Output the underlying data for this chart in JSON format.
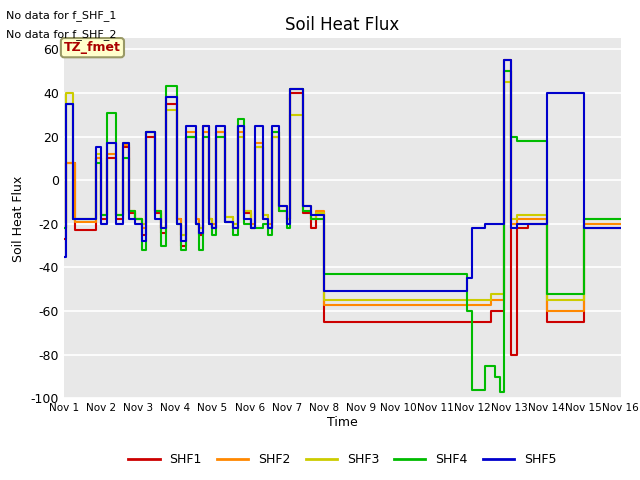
{
  "title": "Soil Heat Flux",
  "ylabel": "Soil Heat Flux",
  "xlabel": "Time",
  "ylim": [
    -100,
    65
  ],
  "xlim": [
    0,
    15
  ],
  "note1": "No data for f_SHF_1",
  "note2": "No data for f_SHF_2",
  "legend_label": "TZ_fmet",
  "series_colors": {
    "SHF1": "#cc0000",
    "SHF2": "#ff8800",
    "SHF3": "#cccc00",
    "SHF4": "#00bb00",
    "SHF5": "#0000cc"
  },
  "xtick_labels": [
    "Nov 1",
    "Nov 2",
    "Nov 3",
    "Nov 4",
    "Nov 5",
    "Nov 6",
    "Nov 7",
    "Nov 8",
    "Nov 9",
    "Nov 10",
    "Nov 11",
    "Nov 12",
    "Nov 13",
    "Nov 14",
    "Nov 15",
    "Nov 16"
  ],
  "xtick_positions": [
    0,
    1,
    2,
    3,
    4,
    5,
    6,
    7,
    8,
    9,
    10,
    11,
    12,
    13,
    14,
    15
  ],
  "ytick_positions": [
    -100,
    -80,
    -60,
    -40,
    -20,
    0,
    20,
    40,
    60
  ],
  "background_color": "#e8e8e8",
  "SHF1": [
    [
      0.0,
      -27
    ],
    [
      0.05,
      -27
    ],
    [
      0.05,
      8
    ],
    [
      0.3,
      8
    ],
    [
      0.3,
      -23
    ],
    [
      0.85,
      -23
    ],
    [
      0.85,
      10
    ],
    [
      1.0,
      10
    ],
    [
      1.0,
      -18
    ],
    [
      1.15,
      -18
    ],
    [
      1.15,
      10
    ],
    [
      1.4,
      10
    ],
    [
      1.4,
      -18
    ],
    [
      1.6,
      -18
    ],
    [
      1.6,
      15
    ],
    [
      1.75,
      15
    ],
    [
      1.75,
      -15
    ],
    [
      1.9,
      -15
    ],
    [
      1.9,
      -18
    ],
    [
      2.1,
      -18
    ],
    [
      2.1,
      -25
    ],
    [
      2.2,
      -25
    ],
    [
      2.2,
      20
    ],
    [
      2.45,
      20
    ],
    [
      2.45,
      -15
    ],
    [
      2.6,
      -15
    ],
    [
      2.6,
      -24
    ],
    [
      2.75,
      -24
    ],
    [
      2.75,
      35
    ],
    [
      3.05,
      35
    ],
    [
      3.05,
      -18
    ],
    [
      3.15,
      -18
    ],
    [
      3.15,
      -30
    ],
    [
      3.3,
      -30
    ],
    [
      3.3,
      20
    ],
    [
      3.55,
      20
    ],
    [
      3.55,
      -20
    ],
    [
      3.65,
      -20
    ],
    [
      3.65,
      -25
    ],
    [
      3.75,
      -25
    ],
    [
      3.75,
      25
    ],
    [
      3.9,
      25
    ],
    [
      3.9,
      -18
    ],
    [
      4.0,
      -18
    ],
    [
      4.0,
      -22
    ],
    [
      4.1,
      -22
    ],
    [
      4.1,
      22
    ],
    [
      4.35,
      22
    ],
    [
      4.35,
      -19
    ],
    [
      4.55,
      -19
    ],
    [
      4.55,
      -22
    ],
    [
      4.7,
      -22
    ],
    [
      4.7,
      25
    ],
    [
      4.85,
      25
    ],
    [
      4.85,
      -15
    ],
    [
      5.05,
      -15
    ],
    [
      5.05,
      -22
    ],
    [
      5.15,
      -22
    ],
    [
      5.15,
      15
    ],
    [
      5.35,
      15
    ],
    [
      5.35,
      -18
    ],
    [
      5.5,
      -18
    ],
    [
      5.5,
      -22
    ],
    [
      5.6,
      -22
    ],
    [
      5.6,
      20
    ],
    [
      5.8,
      20
    ],
    [
      5.8,
      -14
    ],
    [
      6.0,
      -14
    ],
    [
      6.0,
      -18
    ],
    [
      6.1,
      -18
    ],
    [
      6.1,
      40
    ],
    [
      6.45,
      40
    ],
    [
      6.45,
      -15
    ],
    [
      6.65,
      -15
    ],
    [
      6.65,
      -22
    ],
    [
      6.8,
      -22
    ],
    [
      6.8,
      -15
    ],
    [
      7.0,
      -15
    ],
    [
      7.0,
      -65
    ],
    [
      7.05,
      -65
    ],
    [
      7.05,
      -65
    ],
    [
      11.5,
      -65
    ],
    [
      11.5,
      -60
    ],
    [
      11.85,
      -60
    ],
    [
      11.85,
      55
    ],
    [
      12.05,
      55
    ],
    [
      12.05,
      -80
    ],
    [
      12.2,
      -80
    ],
    [
      12.2,
      -22
    ],
    [
      12.5,
      -22
    ],
    [
      12.5,
      -20
    ],
    [
      13.0,
      -20
    ],
    [
      13.0,
      -65
    ],
    [
      13.5,
      -65
    ],
    [
      13.5,
      -65
    ],
    [
      14.0,
      -65
    ],
    [
      14.0,
      -22
    ],
    [
      15.0,
      -22
    ]
  ],
  "SHF2": [
    [
      0.0,
      -22
    ],
    [
      0.05,
      -22
    ],
    [
      0.05,
      8
    ],
    [
      0.3,
      8
    ],
    [
      0.3,
      -19
    ],
    [
      0.85,
      -19
    ],
    [
      0.85,
      10
    ],
    [
      1.0,
      10
    ],
    [
      1.0,
      -16
    ],
    [
      1.15,
      -16
    ],
    [
      1.15,
      12
    ],
    [
      1.4,
      12
    ],
    [
      1.4,
      -16
    ],
    [
      1.6,
      -16
    ],
    [
      1.6,
      16
    ],
    [
      1.75,
      16
    ],
    [
      1.75,
      -14
    ],
    [
      1.9,
      -14
    ],
    [
      1.9,
      -18
    ],
    [
      2.1,
      -18
    ],
    [
      2.1,
      -22
    ],
    [
      2.2,
      -22
    ],
    [
      2.2,
      22
    ],
    [
      2.45,
      22
    ],
    [
      2.45,
      -14
    ],
    [
      2.6,
      -14
    ],
    [
      2.6,
      -22
    ],
    [
      2.75,
      -22
    ],
    [
      2.75,
      38
    ],
    [
      3.05,
      38
    ],
    [
      3.05,
      -18
    ],
    [
      3.15,
      -18
    ],
    [
      3.15,
      -25
    ],
    [
      3.3,
      -25
    ],
    [
      3.3,
      22
    ],
    [
      3.55,
      22
    ],
    [
      3.55,
      -18
    ],
    [
      3.65,
      -18
    ],
    [
      3.65,
      -22
    ],
    [
      3.75,
      -22
    ],
    [
      3.75,
      22
    ],
    [
      3.9,
      22
    ],
    [
      3.9,
      -18
    ],
    [
      4.0,
      -18
    ],
    [
      4.0,
      -20
    ],
    [
      4.1,
      -20
    ],
    [
      4.1,
      22
    ],
    [
      4.35,
      22
    ],
    [
      4.35,
      -17
    ],
    [
      4.55,
      -17
    ],
    [
      4.55,
      -20
    ],
    [
      4.7,
      -20
    ],
    [
      4.7,
      22
    ],
    [
      4.85,
      22
    ],
    [
      4.85,
      -14
    ],
    [
      5.05,
      -14
    ],
    [
      5.05,
      -20
    ],
    [
      5.15,
      -20
    ],
    [
      5.15,
      17
    ],
    [
      5.35,
      17
    ],
    [
      5.35,
      -16
    ],
    [
      5.5,
      -16
    ],
    [
      5.5,
      -20
    ],
    [
      5.6,
      -20
    ],
    [
      5.6,
      22
    ],
    [
      5.8,
      22
    ],
    [
      5.8,
      -12
    ],
    [
      6.0,
      -12
    ],
    [
      6.0,
      -18
    ],
    [
      6.1,
      -18
    ],
    [
      6.1,
      42
    ],
    [
      6.45,
      42
    ],
    [
      6.45,
      -12
    ],
    [
      6.65,
      -12
    ],
    [
      6.65,
      -18
    ],
    [
      6.8,
      -18
    ],
    [
      6.8,
      -14
    ],
    [
      7.0,
      -14
    ],
    [
      7.0,
      -57
    ],
    [
      7.05,
      -57
    ],
    [
      7.05,
      -57
    ],
    [
      11.5,
      -57
    ],
    [
      11.5,
      -55
    ],
    [
      11.85,
      -55
    ],
    [
      11.85,
      50
    ],
    [
      12.05,
      50
    ],
    [
      12.05,
      -20
    ],
    [
      12.2,
      -20
    ],
    [
      12.2,
      -18
    ],
    [
      12.5,
      -18
    ],
    [
      12.5,
      -18
    ],
    [
      13.0,
      -18
    ],
    [
      13.0,
      -60
    ],
    [
      14.0,
      -60
    ],
    [
      14.0,
      -20
    ],
    [
      15.0,
      -20
    ]
  ],
  "SHF3": [
    [
      0.0,
      -22
    ],
    [
      0.05,
      -22
    ],
    [
      0.05,
      40
    ],
    [
      0.25,
      40
    ],
    [
      0.25,
      -18
    ],
    [
      0.85,
      -18
    ],
    [
      0.85,
      12
    ],
    [
      1.0,
      12
    ],
    [
      1.0,
      -16
    ],
    [
      1.15,
      -16
    ],
    [
      1.15,
      17
    ],
    [
      1.4,
      17
    ],
    [
      1.4,
      -16
    ],
    [
      1.6,
      -16
    ],
    [
      1.6,
      17
    ],
    [
      1.75,
      17
    ],
    [
      1.75,
      -14
    ],
    [
      1.9,
      -14
    ],
    [
      1.9,
      -18
    ],
    [
      2.1,
      -18
    ],
    [
      2.1,
      -20
    ],
    [
      2.2,
      -20
    ],
    [
      2.2,
      22
    ],
    [
      2.45,
      22
    ],
    [
      2.45,
      -14
    ],
    [
      2.6,
      -14
    ],
    [
      2.6,
      -22
    ],
    [
      2.75,
      -22
    ],
    [
      2.75,
      32
    ],
    [
      3.05,
      32
    ],
    [
      3.05,
      -20
    ],
    [
      3.15,
      -20
    ],
    [
      3.15,
      -25
    ],
    [
      3.3,
      -25
    ],
    [
      3.3,
      20
    ],
    [
      3.55,
      20
    ],
    [
      3.55,
      -20
    ],
    [
      3.65,
      -20
    ],
    [
      3.65,
      -22
    ],
    [
      3.75,
      -22
    ],
    [
      3.75,
      20
    ],
    [
      3.9,
      20
    ],
    [
      3.9,
      -18
    ],
    [
      4.0,
      -18
    ],
    [
      4.0,
      -22
    ],
    [
      4.1,
      -22
    ],
    [
      4.1,
      20
    ],
    [
      4.35,
      20
    ],
    [
      4.35,
      -17
    ],
    [
      4.55,
      -17
    ],
    [
      4.55,
      -20
    ],
    [
      4.7,
      -20
    ],
    [
      4.7,
      20
    ],
    [
      4.85,
      20
    ],
    [
      4.85,
      -14
    ],
    [
      5.05,
      -14
    ],
    [
      5.05,
      -22
    ],
    [
      5.15,
      -22
    ],
    [
      5.15,
      15
    ],
    [
      5.35,
      15
    ],
    [
      5.35,
      -16
    ],
    [
      5.5,
      -16
    ],
    [
      5.5,
      -22
    ],
    [
      5.6,
      -22
    ],
    [
      5.6,
      20
    ],
    [
      5.8,
      20
    ],
    [
      5.8,
      -12
    ],
    [
      6.0,
      -12
    ],
    [
      6.0,
      -18
    ],
    [
      6.1,
      -18
    ],
    [
      6.1,
      30
    ],
    [
      6.45,
      30
    ],
    [
      6.45,
      -12
    ],
    [
      6.65,
      -12
    ],
    [
      6.65,
      -18
    ],
    [
      6.8,
      -18
    ],
    [
      6.8,
      -15
    ],
    [
      7.0,
      -15
    ],
    [
      7.0,
      -55
    ],
    [
      7.05,
      -55
    ],
    [
      7.05,
      -55
    ],
    [
      11.5,
      -55
    ],
    [
      11.5,
      -52
    ],
    [
      11.85,
      -52
    ],
    [
      11.85,
      45
    ],
    [
      12.05,
      45
    ],
    [
      12.05,
      -18
    ],
    [
      12.2,
      -18
    ],
    [
      12.2,
      -16
    ],
    [
      12.5,
      -16
    ],
    [
      12.5,
      -16
    ],
    [
      13.0,
      -16
    ],
    [
      13.0,
      -55
    ],
    [
      14.0,
      -55
    ],
    [
      14.0,
      -18
    ],
    [
      15.0,
      -18
    ]
  ],
  "SHF4": [
    [
      0.0,
      -22
    ],
    [
      0.05,
      -22
    ],
    [
      0.05,
      35
    ],
    [
      0.25,
      35
    ],
    [
      0.25,
      -18
    ],
    [
      0.85,
      -18
    ],
    [
      0.85,
      8
    ],
    [
      1.0,
      8
    ],
    [
      1.0,
      -16
    ],
    [
      1.15,
      -16
    ],
    [
      1.15,
      31
    ],
    [
      1.4,
      31
    ],
    [
      1.4,
      -16
    ],
    [
      1.6,
      -16
    ],
    [
      1.6,
      10
    ],
    [
      1.75,
      10
    ],
    [
      1.75,
      -14
    ],
    [
      1.9,
      -14
    ],
    [
      1.9,
      -18
    ],
    [
      2.1,
      -18
    ],
    [
      2.1,
      -32
    ],
    [
      2.2,
      -32
    ],
    [
      2.2,
      22
    ],
    [
      2.45,
      22
    ],
    [
      2.45,
      -14
    ],
    [
      2.6,
      -14
    ],
    [
      2.6,
      -30
    ],
    [
      2.75,
      -30
    ],
    [
      2.75,
      43
    ],
    [
      3.05,
      43
    ],
    [
      3.05,
      -20
    ],
    [
      3.15,
      -20
    ],
    [
      3.15,
      -32
    ],
    [
      3.3,
      -32
    ],
    [
      3.3,
      20
    ],
    [
      3.55,
      20
    ],
    [
      3.55,
      -20
    ],
    [
      3.65,
      -20
    ],
    [
      3.65,
      -32
    ],
    [
      3.75,
      -32
    ],
    [
      3.75,
      20
    ],
    [
      3.9,
      20
    ],
    [
      3.9,
      -20
    ],
    [
      4.0,
      -20
    ],
    [
      4.0,
      -25
    ],
    [
      4.1,
      -25
    ],
    [
      4.1,
      20
    ],
    [
      4.35,
      20
    ],
    [
      4.35,
      -19
    ],
    [
      4.55,
      -19
    ],
    [
      4.55,
      -25
    ],
    [
      4.7,
      -25
    ],
    [
      4.7,
      28
    ],
    [
      4.85,
      28
    ],
    [
      4.85,
      -20
    ],
    [
      5.05,
      -20
    ],
    [
      5.05,
      -22
    ],
    [
      5.15,
      -22
    ],
    [
      5.15,
      -22
    ],
    [
      5.35,
      -22
    ],
    [
      5.35,
      -20
    ],
    [
      5.5,
      -20
    ],
    [
      5.5,
      -25
    ],
    [
      5.6,
      -25
    ],
    [
      5.6,
      22
    ],
    [
      5.8,
      22
    ],
    [
      5.8,
      -14
    ],
    [
      6.0,
      -14
    ],
    [
      6.0,
      -22
    ],
    [
      6.1,
      -22
    ],
    [
      6.1,
      42
    ],
    [
      6.45,
      42
    ],
    [
      6.45,
      -14
    ],
    [
      6.65,
      -14
    ],
    [
      6.65,
      -18
    ],
    [
      6.8,
      -18
    ],
    [
      6.8,
      -18
    ],
    [
      7.0,
      -18
    ],
    [
      7.0,
      -43
    ],
    [
      7.05,
      -43
    ],
    [
      7.05,
      -43
    ],
    [
      10.85,
      -43
    ],
    [
      10.85,
      -60
    ],
    [
      11.0,
      -60
    ],
    [
      11.0,
      -96
    ],
    [
      11.35,
      -96
    ],
    [
      11.35,
      -85
    ],
    [
      11.6,
      -85
    ],
    [
      11.6,
      -90
    ],
    [
      11.75,
      -90
    ],
    [
      11.75,
      -97
    ],
    [
      11.85,
      -97
    ],
    [
      11.85,
      50
    ],
    [
      12.05,
      50
    ],
    [
      12.05,
      20
    ],
    [
      12.2,
      20
    ],
    [
      12.2,
      18
    ],
    [
      12.5,
      18
    ],
    [
      12.5,
      18
    ],
    [
      13.0,
      18
    ],
    [
      13.0,
      -52
    ],
    [
      14.0,
      -52
    ],
    [
      14.0,
      -18
    ],
    [
      15.0,
      -18
    ]
  ],
  "SHF5": [
    [
      0.0,
      -35
    ],
    [
      0.05,
      -35
    ],
    [
      0.05,
      35
    ],
    [
      0.25,
      35
    ],
    [
      0.25,
      -18
    ],
    [
      0.85,
      -18
    ],
    [
      0.85,
      15
    ],
    [
      1.0,
      15
    ],
    [
      1.0,
      -20
    ],
    [
      1.15,
      -20
    ],
    [
      1.15,
      17
    ],
    [
      1.4,
      17
    ],
    [
      1.4,
      -20
    ],
    [
      1.6,
      -20
    ],
    [
      1.6,
      17
    ],
    [
      1.75,
      17
    ],
    [
      1.75,
      -18
    ],
    [
      1.9,
      -18
    ],
    [
      1.9,
      -20
    ],
    [
      2.1,
      -20
    ],
    [
      2.1,
      -28
    ],
    [
      2.2,
      -28
    ],
    [
      2.2,
      22
    ],
    [
      2.45,
      22
    ],
    [
      2.45,
      -18
    ],
    [
      2.6,
      -18
    ],
    [
      2.6,
      -22
    ],
    [
      2.75,
      -22
    ],
    [
      2.75,
      38
    ],
    [
      3.05,
      38
    ],
    [
      3.05,
      -20
    ],
    [
      3.15,
      -20
    ],
    [
      3.15,
      -28
    ],
    [
      3.3,
      -28
    ],
    [
      3.3,
      25
    ],
    [
      3.55,
      25
    ],
    [
      3.55,
      -20
    ],
    [
      3.65,
      -20
    ],
    [
      3.65,
      -24
    ],
    [
      3.75,
      -24
    ],
    [
      3.75,
      25
    ],
    [
      3.9,
      25
    ],
    [
      3.9,
      -20
    ],
    [
      4.0,
      -20
    ],
    [
      4.0,
      -22
    ],
    [
      4.1,
      -22
    ],
    [
      4.1,
      25
    ],
    [
      4.35,
      25
    ],
    [
      4.35,
      -19
    ],
    [
      4.55,
      -19
    ],
    [
      4.55,
      -22
    ],
    [
      4.7,
      -22
    ],
    [
      4.7,
      25
    ],
    [
      4.85,
      25
    ],
    [
      4.85,
      -18
    ],
    [
      5.05,
      -18
    ],
    [
      5.05,
      -22
    ],
    [
      5.15,
      -22
    ],
    [
      5.15,
      25
    ],
    [
      5.35,
      25
    ],
    [
      5.35,
      -18
    ],
    [
      5.5,
      -18
    ],
    [
      5.5,
      -22
    ],
    [
      5.6,
      -22
    ],
    [
      5.6,
      25
    ],
    [
      5.8,
      25
    ],
    [
      5.8,
      -12
    ],
    [
      6.0,
      -12
    ],
    [
      6.0,
      -20
    ],
    [
      6.1,
      -20
    ],
    [
      6.1,
      42
    ],
    [
      6.45,
      42
    ],
    [
      6.45,
      -12
    ],
    [
      6.65,
      -12
    ],
    [
      6.65,
      -16
    ],
    [
      6.8,
      -16
    ],
    [
      6.8,
      -16
    ],
    [
      7.0,
      -16
    ],
    [
      7.0,
      -51
    ],
    [
      7.05,
      -51
    ],
    [
      7.05,
      -51
    ],
    [
      10.85,
      -51
    ],
    [
      10.85,
      -45
    ],
    [
      11.0,
      -45
    ],
    [
      11.0,
      -22
    ],
    [
      11.35,
      -22
    ],
    [
      11.35,
      -20
    ],
    [
      11.6,
      -20
    ],
    [
      11.6,
      -20
    ],
    [
      11.85,
      -20
    ],
    [
      11.85,
      55
    ],
    [
      12.05,
      55
    ],
    [
      12.05,
      -22
    ],
    [
      12.2,
      -22
    ],
    [
      12.2,
      -20
    ],
    [
      12.5,
      -20
    ],
    [
      12.5,
      -20
    ],
    [
      13.0,
      -20
    ],
    [
      13.0,
      40
    ],
    [
      13.5,
      40
    ],
    [
      13.5,
      40
    ],
    [
      14.0,
      40
    ],
    [
      14.0,
      -22
    ],
    [
      15.0,
      -22
    ]
  ]
}
